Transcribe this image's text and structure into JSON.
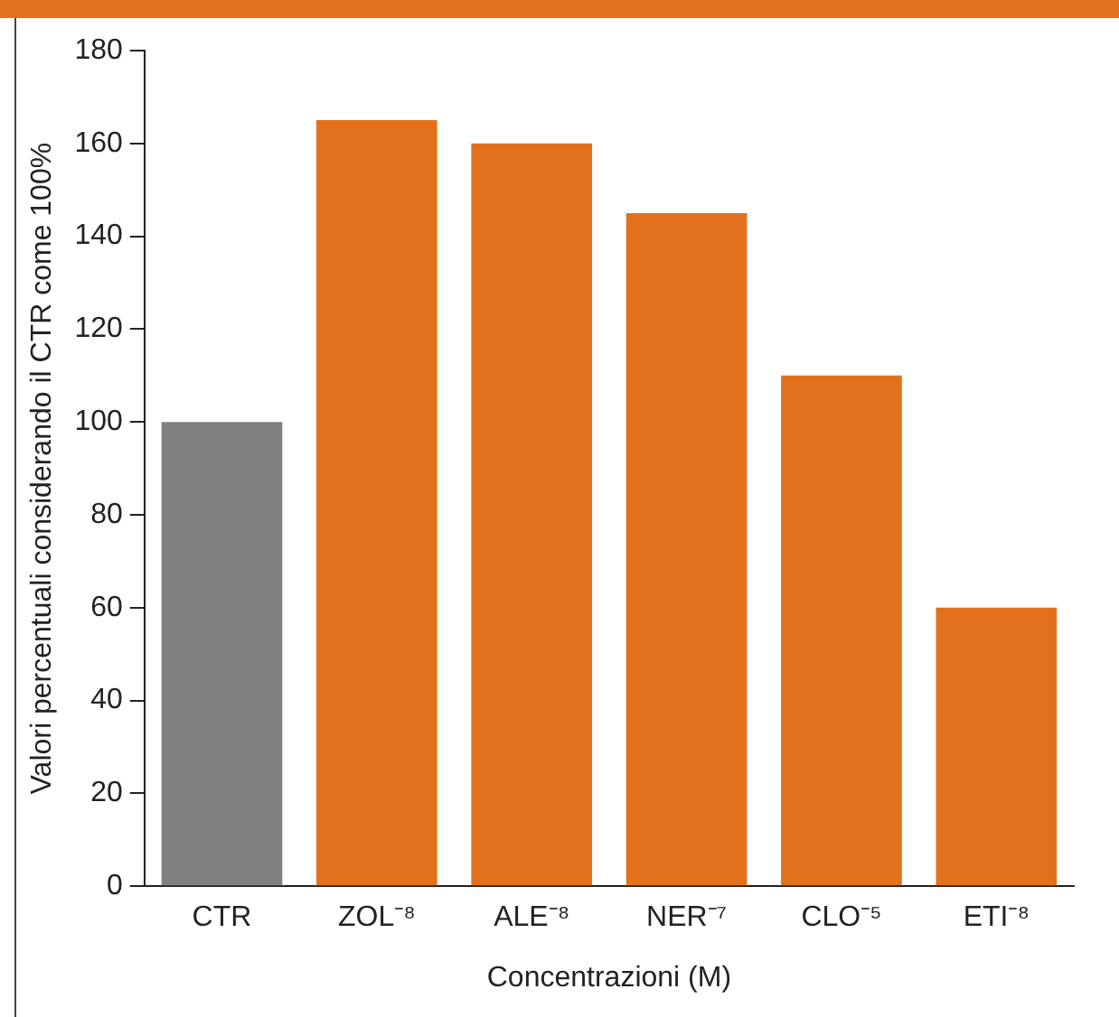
{
  "chart_data": {
    "type": "bar",
    "xlabel": "Concentrazioni (M)",
    "ylabel": "Valori percentuali considerando il CTR come 100%",
    "categories": [
      "CTR",
      "ZOL⁻⁸",
      "ALE⁻⁸",
      "NER⁻⁷",
      "CLO⁻⁵",
      "ETI⁻⁸"
    ],
    "values": [
      100,
      165,
      160,
      145,
      110,
      60
    ],
    "colors": [
      "#808083",
      "#e2711d",
      "#e2711d",
      "#e2711d",
      "#e2711d",
      "#e2711d"
    ],
    "ylim": [
      0,
      180
    ],
    "yticks": [
      0,
      20,
      40,
      60,
      80,
      100,
      120,
      140,
      160,
      180
    ],
    "grid": false,
    "legend": false
  }
}
